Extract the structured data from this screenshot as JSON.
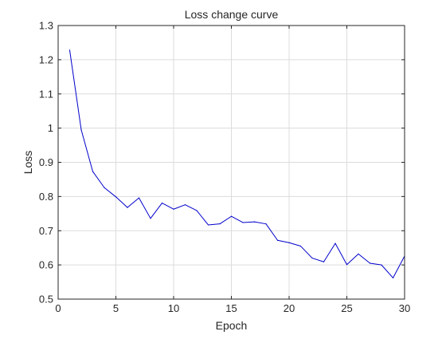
{
  "chart_data": {
    "type": "line",
    "title": "Loss change curve",
    "xlabel": "Epoch",
    "ylabel": "Loss",
    "xlim": [
      0,
      30
    ],
    "ylim": [
      0.5,
      1.3
    ],
    "xticks": [
      0,
      5,
      10,
      15,
      20,
      25,
      30
    ],
    "yticks": [
      0.5,
      0.6,
      0.7,
      0.8,
      0.9,
      1,
      1.1,
      1.2,
      1.3
    ],
    "grid": true,
    "box": true,
    "series": [
      {
        "color": "#0000cc",
        "x": [
          1,
          2,
          3,
          4,
          5,
          6,
          7,
          8,
          9,
          10,
          11,
          12,
          13,
          14,
          15,
          16,
          17,
          18,
          19,
          20,
          21,
          22,
          23,
          24,
          25,
          26,
          27,
          28,
          29,
          30
        ],
        "y": [
          1.228,
          0.995,
          0.873,
          0.826,
          0.799,
          0.768,
          0.796,
          0.736,
          0.781,
          0.763,
          0.776,
          0.759,
          0.717,
          0.72,
          0.742,
          0.724,
          0.726,
          0.72,
          0.672,
          0.665,
          0.655,
          0.62,
          0.609,
          0.663,
          0.601,
          0.632,
          0.605,
          0.6,
          0.562,
          0.626
        ]
      }
    ]
  }
}
